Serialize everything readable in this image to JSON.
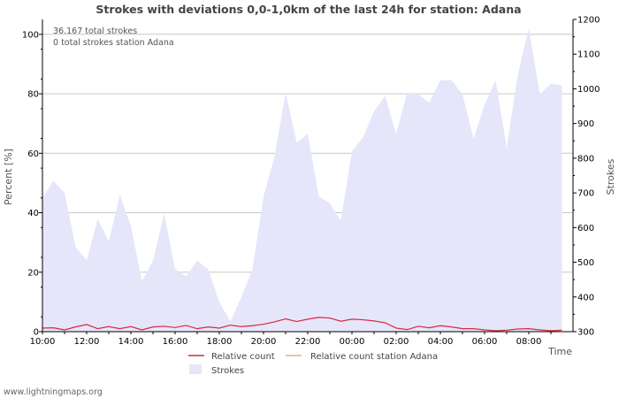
{
  "chart_data": {
    "type": "area+line",
    "title": "Strokes with deviations 0,0-1,0km of the last 24h for station: Adana",
    "ylabel_left": "Percent   [%]",
    "ylabel_right": "Strokes",
    "xlabel": "Time",
    "ylim_left": [
      0,
      105
    ],
    "ylim_right": [
      300,
      1200
    ],
    "left_ticks": [
      0,
      20,
      40,
      60,
      80,
      100
    ],
    "right_ticks": [
      300,
      400,
      500,
      600,
      700,
      800,
      900,
      1000,
      1100,
      1200
    ],
    "x_hours": [
      0,
      1,
      2,
      3,
      4,
      5,
      6,
      7,
      8,
      9,
      10,
      11,
      12,
      13,
      14,
      15,
      16,
      17,
      18,
      19,
      20,
      21,
      22,
      23
    ],
    "x_tick_labels": [
      "10:00",
      "12:00",
      "14:00",
      "16:00",
      "18:00",
      "20:00",
      "22:00",
      "00:00",
      "02:00",
      "04:00",
      "06:00",
      "08:00"
    ],
    "annotations": [
      "36.167 total strokes",
      "0 total strokes station Adana"
    ],
    "series": [
      {
        "name": "Strokes",
        "axis": "right",
        "color": "#e6e6fa",
        "x": [
          0,
          0.5,
          1,
          1.5,
          2,
          2.5,
          3,
          3.5,
          4,
          4.5,
          5,
          5.5,
          6,
          6.5,
          7,
          7.5,
          8,
          8.5,
          9,
          9.5,
          10,
          10.5,
          11,
          11.5,
          12,
          12.5,
          13,
          13.5,
          14,
          14.5,
          15,
          15.5,
          16,
          16.5,
          17,
          17.5,
          18,
          18.5,
          19,
          19.5,
          20,
          20.5,
          21,
          21.5,
          22,
          22.5,
          23,
          23.5
        ],
        "values": [
          685,
          735,
          700,
          545,
          505,
          625,
          560,
          695,
          605,
          445,
          505,
          640,
          480,
          460,
          505,
          480,
          385,
          330,
          400,
          480,
          690,
          805,
          990,
          845,
          870,
          690,
          670,
          620,
          820,
          860,
          935,
          980,
          870,
          990,
          985,
          960,
          1025,
          1025,
          985,
          855,
          955,
          1025,
          830,
          1040,
          1175,
          985,
          1015,
          1010
        ]
      },
      {
        "name": "Relative count",
        "axis": "left",
        "color": "#d52a3a",
        "x": [
          0,
          0.5,
          1,
          1.5,
          2,
          2.5,
          3,
          3.5,
          4,
          4.5,
          5,
          5.5,
          6,
          6.5,
          7,
          7.5,
          8,
          8.5,
          9,
          9.5,
          10,
          10.5,
          11,
          11.5,
          12,
          12.5,
          13,
          13.5,
          14,
          14.5,
          15,
          15.5,
          16,
          16.5,
          17,
          17.5,
          18,
          18.5,
          19,
          19.5,
          20,
          20.5,
          21,
          21.5,
          22,
          22.5,
          23,
          23.5
        ],
        "values": [
          1.2,
          1.3,
          0.6,
          1.6,
          2.4,
          1.0,
          1.7,
          1.0,
          1.7,
          0.6,
          1.6,
          1.8,
          1.4,
          2.1,
          1.0,
          1.6,
          1.2,
          2.2,
          1.7,
          2.0,
          2.5,
          3.3,
          4.3,
          3.4,
          4.2,
          4.8,
          4.6,
          3.5,
          4.2,
          4.0,
          3.6,
          3.0,
          1.2,
          0.7,
          1.8,
          1.3,
          2.0,
          1.6,
          1.0,
          1.0,
          0.6,
          0.3,
          0.5,
          0.9,
          1.0,
          0.6,
          0.3,
          0.5
        ]
      },
      {
        "name": "Relative count station Adana",
        "axis": "left",
        "color": "#f4a582",
        "x": [],
        "values": []
      }
    ],
    "legend": [
      "Relative count",
      "Relative count station Adana",
      "Strokes"
    ]
  },
  "footer": "www.lightningmaps.org"
}
